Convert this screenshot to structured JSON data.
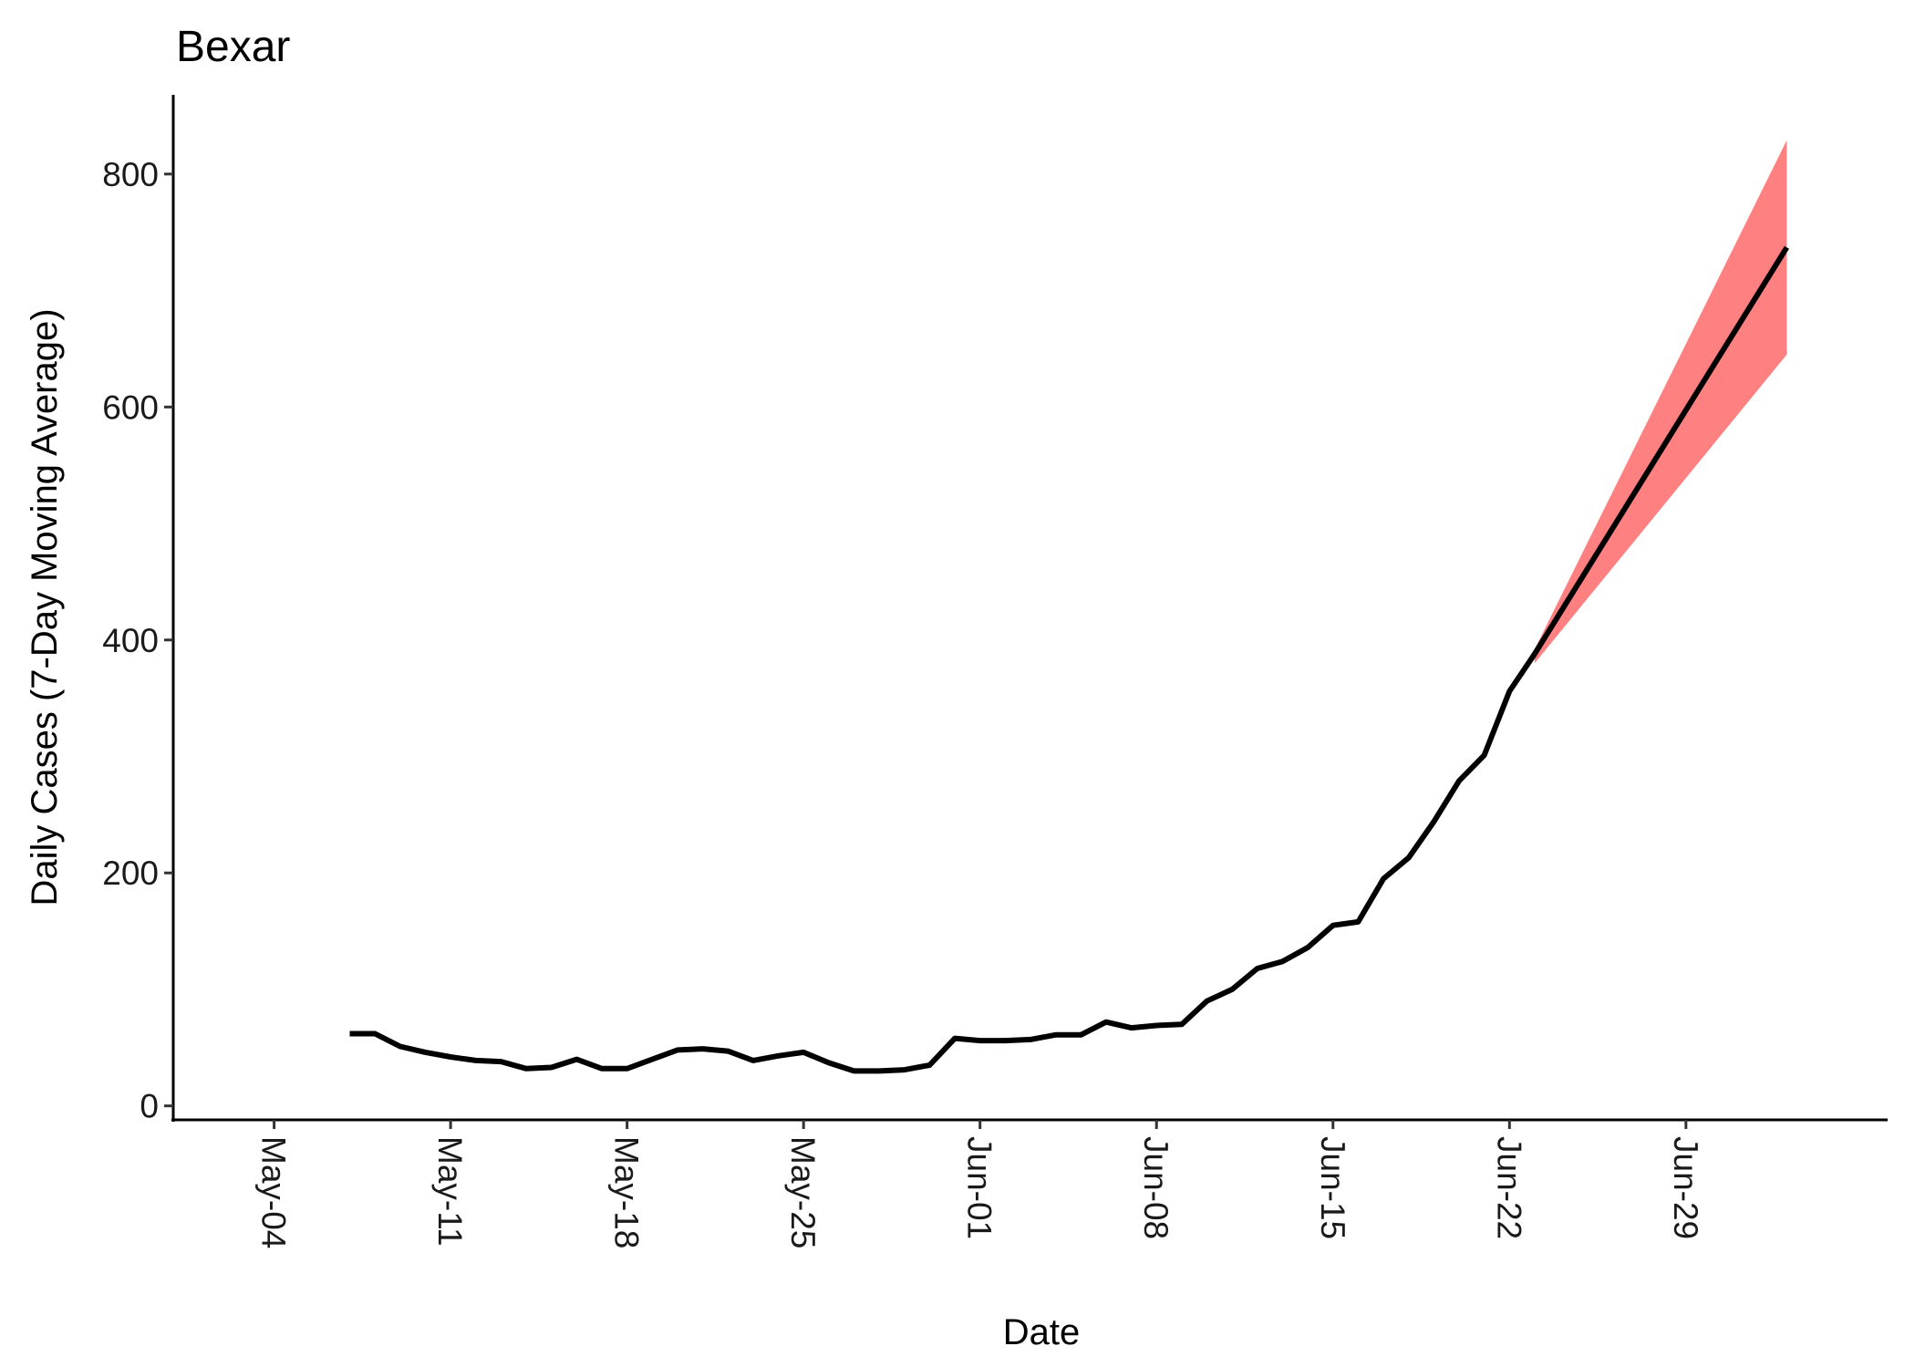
{
  "chart_data": {
    "type": "line",
    "title": "Bexar",
    "xlabel": "Date",
    "ylabel": "Daily Cases (7-Day Moving Average)",
    "xlim": [
      "2020-04-30",
      "2020-07-07"
    ],
    "ylim": [
      -12,
      868
    ],
    "x_ticks": [
      {
        "date": "2020-05-04",
        "label": "May-04"
      },
      {
        "date": "2020-05-11",
        "label": "May-11"
      },
      {
        "date": "2020-05-18",
        "label": "May-18"
      },
      {
        "date": "2020-05-25",
        "label": "May-25"
      },
      {
        "date": "2020-06-01",
        "label": "Jun-01"
      },
      {
        "date": "2020-06-08",
        "label": "Jun-08"
      },
      {
        "date": "2020-06-15",
        "label": "Jun-15"
      },
      {
        "date": "2020-06-22",
        "label": "Jun-22"
      },
      {
        "date": "2020-06-29",
        "label": "Jun-29"
      }
    ],
    "y_ticks": [
      0,
      200,
      400,
      600,
      800
    ],
    "grid": false,
    "series": [
      {
        "role": "observed",
        "color": "#000000",
        "points": [
          [
            "2020-05-07",
            62
          ],
          [
            "2020-05-08",
            62
          ],
          [
            "2020-05-09",
            51
          ],
          [
            "2020-05-10",
            46
          ],
          [
            "2020-05-11",
            42
          ],
          [
            "2020-05-12",
            39
          ],
          [
            "2020-05-13",
            38
          ],
          [
            "2020-05-14",
            32
          ],
          [
            "2020-05-15",
            33
          ],
          [
            "2020-05-16",
            40
          ],
          [
            "2020-05-17",
            32
          ],
          [
            "2020-05-18",
            32
          ],
          [
            "2020-05-19",
            40
          ],
          [
            "2020-05-20",
            48
          ],
          [
            "2020-05-21",
            49
          ],
          [
            "2020-05-22",
            47
          ],
          [
            "2020-05-23",
            39
          ],
          [
            "2020-05-24",
            43
          ],
          [
            "2020-05-25",
            46
          ],
          [
            "2020-05-26",
            37
          ],
          [
            "2020-05-27",
            30
          ],
          [
            "2020-05-28",
            30
          ],
          [
            "2020-05-29",
            31
          ],
          [
            "2020-05-30",
            35
          ],
          [
            "2020-05-31",
            58
          ],
          [
            "2020-06-01",
            56
          ],
          [
            "2020-06-02",
            56
          ],
          [
            "2020-06-03",
            57
          ],
          [
            "2020-06-04",
            61
          ],
          [
            "2020-06-05",
            61
          ],
          [
            "2020-06-06",
            72
          ],
          [
            "2020-06-07",
            67
          ],
          [
            "2020-06-08",
            69
          ],
          [
            "2020-06-09",
            70
          ],
          [
            "2020-06-10",
            90
          ],
          [
            "2020-06-11",
            100
          ],
          [
            "2020-06-12",
            118
          ],
          [
            "2020-06-13",
            124
          ],
          [
            "2020-06-14",
            136
          ],
          [
            "2020-06-15",
            155
          ],
          [
            "2020-06-16",
            158
          ],
          [
            "2020-06-17",
            195
          ],
          [
            "2020-06-18",
            213
          ],
          [
            "2020-06-19",
            244
          ],
          [
            "2020-06-20",
            279
          ],
          [
            "2020-06-21",
            301
          ],
          [
            "2020-06-22",
            356
          ],
          [
            "2020-06-23",
            388
          ]
        ]
      },
      {
        "role": "projection",
        "color": "#000000",
        "points": [
          [
            "2020-06-23",
            388
          ],
          [
            "2020-07-03",
            737
          ]
        ]
      }
    ],
    "projection_band": {
      "color": "#ff8080",
      "points": [
        [
          "2020-06-23",
          380,
          392
        ],
        [
          "2020-07-03",
          645,
          829
        ]
      ]
    }
  }
}
